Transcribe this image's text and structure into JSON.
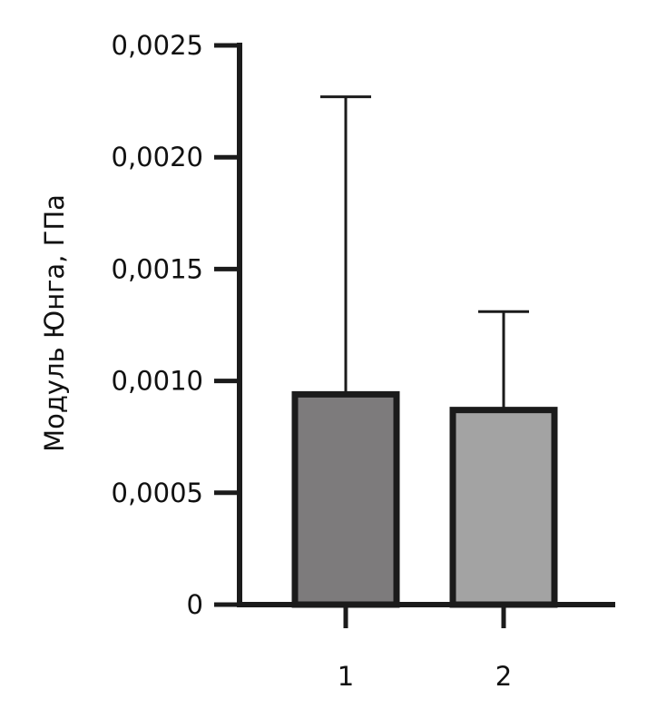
{
  "chart_data": {
    "type": "bar",
    "categories": [
      "1",
      "2"
    ],
    "values": [
      0.00094,
      0.00087
    ],
    "error_upper": [
      0.00227,
      0.00131
    ],
    "error_bars": "upper only",
    "ylabel": "Модуль Юнга, ГПа",
    "xlabel": "",
    "ylim": [
      0,
      0.0025
    ],
    "yticks": [
      0,
      0.0005,
      0.001,
      0.0015,
      0.002,
      0.0025
    ],
    "ytick_labels": [
      "0",
      "0,0005",
      "0,0010",
      "0,0015",
      "0,0020",
      "0,0025"
    ],
    "bar_colors": [
      "#7d7b7c",
      "#a3a3a3"
    ],
    "bar_edge_color": "#1b1b1b",
    "grid": false,
    "legend": "none"
  }
}
